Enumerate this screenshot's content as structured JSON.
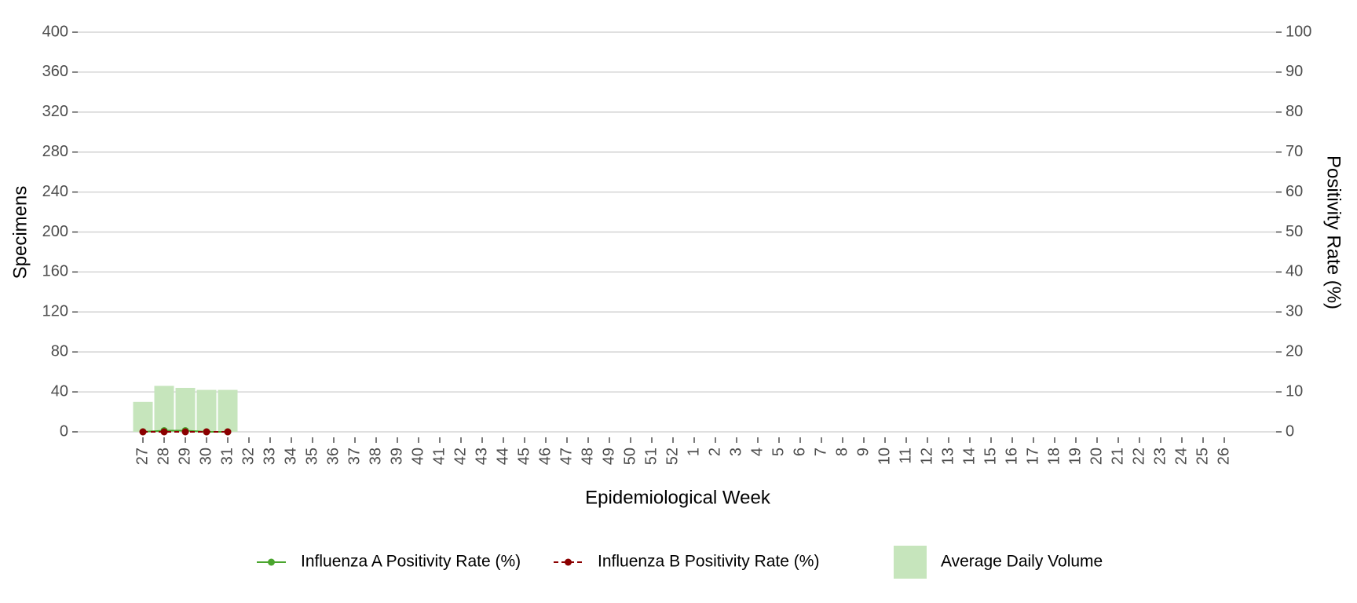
{
  "chart_data": {
    "type": "bar",
    "x_label": "Epidemiological Week",
    "y_label": "Specimens",
    "y2_label": "Positivity Rate (%)",
    "categories": [
      "27",
      "28",
      "29",
      "30",
      "31",
      "32",
      "33",
      "34",
      "35",
      "36",
      "37",
      "38",
      "39",
      "40",
      "41",
      "42",
      "43",
      "44",
      "45",
      "46",
      "47",
      "48",
      "49",
      "50",
      "51",
      "52",
      "1",
      "2",
      "3",
      "4",
      "5",
      "6",
      "7",
      "8",
      "9",
      "10",
      "11",
      "12",
      "13",
      "14",
      "15",
      "16",
      "17",
      "18",
      "19",
      "20",
      "21",
      "22",
      "23",
      "24",
      "25",
      "26"
    ],
    "ylim": [
      0,
      400
    ],
    "yticks": [
      0,
      40,
      80,
      120,
      160,
      200,
      240,
      280,
      320,
      360,
      400
    ],
    "y2lim": [
      0,
      100
    ],
    "y2ticks": [
      0,
      10,
      20,
      30,
      40,
      50,
      60,
      70,
      80,
      90,
      100
    ],
    "grid": true,
    "legend": "bottom",
    "series": [
      {
        "name": "Influenza A Positivity Rate (%)",
        "type": "line",
        "axis": "y2",
        "color": "#4aa52e",
        "dash": false,
        "values": [
          0,
          0.3,
          0.3,
          0,
          0,
          null,
          null,
          null,
          null,
          null,
          null,
          null,
          null,
          null,
          null,
          null,
          null,
          null,
          null,
          null,
          null,
          null,
          null,
          null,
          null,
          null,
          null,
          null,
          null,
          null,
          null,
          null,
          null,
          null,
          null,
          null,
          null,
          null,
          null,
          null,
          null,
          null,
          null,
          null,
          null,
          null,
          null,
          null,
          null,
          null,
          null,
          null
        ]
      },
      {
        "name": "Influenza B Positivity Rate (%)",
        "type": "line",
        "axis": "y2",
        "color": "#8b0000",
        "dash": true,
        "values": [
          0,
          0,
          0,
          0,
          0,
          null,
          null,
          null,
          null,
          null,
          null,
          null,
          null,
          null,
          null,
          null,
          null,
          null,
          null,
          null,
          null,
          null,
          null,
          null,
          null,
          null,
          null,
          null,
          null,
          null,
          null,
          null,
          null,
          null,
          null,
          null,
          null,
          null,
          null,
          null,
          null,
          null,
          null,
          null,
          null,
          null,
          null,
          null,
          null,
          null,
          null,
          null
        ]
      },
      {
        "name": "Average Daily Volume",
        "type": "bar",
        "axis": "y",
        "color": "#c6e5bc",
        "values": [
          30,
          46,
          44,
          42,
          42,
          null,
          null,
          null,
          null,
          null,
          null,
          null,
          null,
          null,
          null,
          null,
          null,
          null,
          null,
          null,
          null,
          null,
          null,
          null,
          null,
          null,
          null,
          null,
          null,
          null,
          null,
          null,
          null,
          null,
          null,
          null,
          null,
          null,
          null,
          null,
          null,
          null,
          null,
          null,
          null,
          null,
          null,
          null,
          null,
          null,
          null,
          null
        ]
      }
    ]
  }
}
